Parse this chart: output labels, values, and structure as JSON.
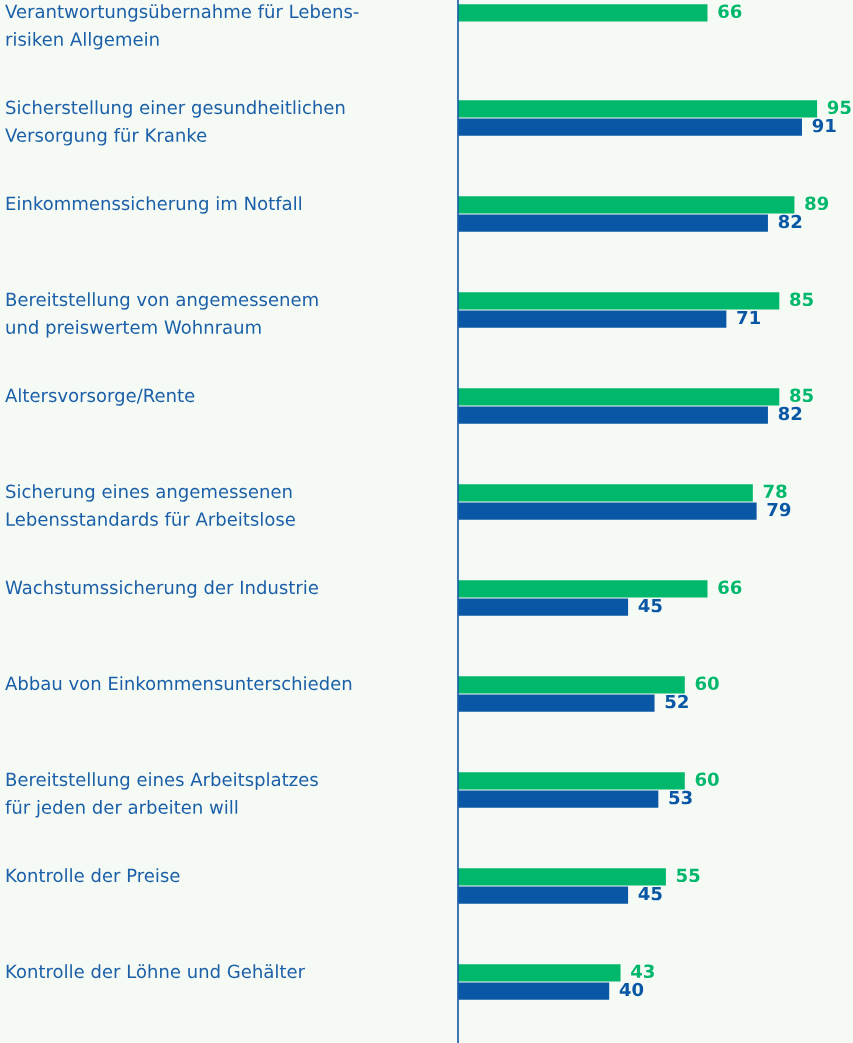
{
  "chart_data": {
    "type": "bar",
    "orientation": "horizontal",
    "data_labels": true,
    "legend": false,
    "categories": [
      "Verantwortungsübernahme für Lebens-\nrisiken Allgemein",
      "Sicherstellung einer gesundheitlichen\nVersorgung für Kranke",
      "Einkommenssicherung im Notfall",
      "Bereitstellung von angemessenem\nund preiswertem Wohnraum",
      "Altersvorsorge/Rente",
      "Sicherung eines angemessenen\nLebensstandards für Arbeitslose",
      "Wachstumssicherung der Industrie",
      "Abbau von Einkommensunterschieden",
      "Bereitstellung eines Arbeitsplatzes\nfür jeden der arbeiten will",
      "Kontrolle der Preise",
      "Kontrolle der Löhne und Gehälter"
    ],
    "series": [
      {
        "color": "#00b86b",
        "values": [
          66,
          95,
          89,
          85,
          85,
          78,
          66,
          60,
          60,
          55,
          43
        ]
      },
      {
        "color": "#0a58a5",
        "values": [
          null,
          91,
          82,
          71,
          82,
          79,
          45,
          52,
          53,
          45,
          40
        ]
      }
    ]
  }
}
